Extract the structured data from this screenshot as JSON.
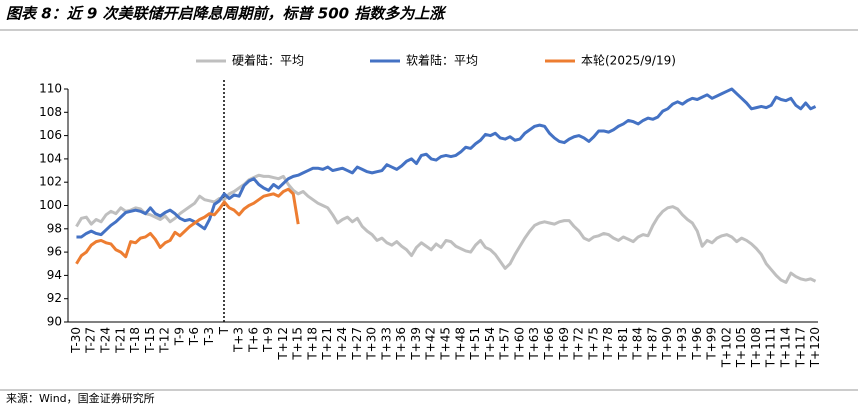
{
  "chart_data": {
    "type": "line",
    "title": "图表 8：近 9 次美联储开启降息周期前，标普 500 指数多为上涨",
    "source": "来源：Wind，国金证券研究所",
    "categories": [
      "T-30",
      null,
      null,
      "T-27",
      null,
      null,
      "T-24",
      null,
      null,
      "T-21",
      null,
      null,
      "T-18",
      null,
      null,
      "T-15",
      null,
      null,
      "T-12",
      null,
      null,
      "T-9",
      null,
      null,
      "T-6",
      null,
      null,
      "T-3",
      null,
      null,
      "T",
      null,
      null,
      "T+3",
      null,
      null,
      "T+6",
      null,
      null,
      "T+9",
      null,
      null,
      "T+12",
      null,
      null,
      "T+15",
      null,
      null,
      "T+18",
      null,
      null,
      "T+21",
      null,
      null,
      "T+24",
      null,
      null,
      "T+27",
      null,
      null,
      "T+30",
      null,
      null,
      "T+33",
      null,
      null,
      "T+36",
      null,
      null,
      "T+39",
      null,
      null,
      "T+42",
      null,
      null,
      "T+45",
      null,
      null,
      "T+48",
      null,
      null,
      "T+51",
      null,
      null,
      "T+54",
      null,
      null,
      "T+57",
      null,
      null,
      "T+60",
      null,
      null,
      "T+63",
      null,
      null,
      "T+66",
      null,
      null,
      "T+69",
      null,
      null,
      "T+72",
      null,
      null,
      "T+75",
      null,
      null,
      "T+78",
      null,
      null,
      "T+81",
      null,
      null,
      "T+84",
      null,
      null,
      "T+87",
      null,
      null,
      "T+90",
      null,
      null,
      "T+93",
      null,
      null,
      "T+96",
      null,
      null,
      "T+99",
      null,
      null,
      "T+102",
      null,
      null,
      "T+105",
      null,
      null,
      "T+108",
      null,
      null,
      "T+111",
      null,
      null,
      "T+114",
      null,
      null,
      "T+117",
      null,
      null,
      "T+120"
    ],
    "series": [
      {
        "name": "硬着陆：平均",
        "color": "#bfbfbf",
        "values": [
          98.2,
          98.9,
          99.0,
          98.4,
          98.8,
          98.6,
          99.2,
          99.5,
          99.3,
          99.8,
          99.5,
          99.6,
          99.8,
          99.7,
          99.3,
          99.2,
          99.0,
          98.8,
          99.1,
          98.6,
          98.9,
          99.3,
          99.6,
          99.9,
          100.2,
          100.8,
          100.5,
          100.4,
          100.3,
          100.6,
          100.5,
          101.0,
          101.2,
          101.5,
          101.8,
          102.2,
          102.4,
          102.6,
          102.5,
          102.5,
          102.4,
          102.3,
          102.5,
          101.8,
          101.3,
          101.0,
          101.2,
          100.8,
          100.5,
          100.2,
          100.0,
          99.8,
          99.2,
          98.5,
          98.8,
          99.0,
          98.6,
          98.9,
          98.2,
          97.8,
          97.5,
          97.0,
          97.2,
          96.8,
          96.6,
          96.9,
          96.5,
          96.2,
          95.7,
          96.4,
          96.8,
          96.5,
          96.2,
          96.7,
          96.4,
          97.0,
          96.9,
          96.5,
          96.3,
          96.1,
          96.0,
          96.6,
          97.0,
          96.4,
          96.2,
          95.8,
          95.2,
          94.6,
          95.0,
          95.8,
          96.5,
          97.2,
          97.8,
          98.3,
          98.5,
          98.6,
          98.5,
          98.4,
          98.6,
          98.7,
          98.7,
          98.2,
          97.8,
          97.2,
          97.0,
          97.3,
          97.4,
          97.6,
          97.5,
          97.2,
          97.0,
          97.3,
          97.1,
          96.9,
          97.3,
          97.5,
          97.4,
          98.3,
          99.0,
          99.5,
          99.8,
          99.9,
          99.7,
          99.2,
          98.8,
          98.5,
          97.8,
          96.5,
          97.0,
          96.8,
          97.2,
          97.4,
          97.5,
          97.3,
          96.9,
          97.2,
          97.0,
          96.7,
          96.3,
          95.8,
          95.0,
          94.5,
          94.0,
          93.6,
          93.4,
          94.2,
          93.9,
          93.7,
          93.6,
          93.7,
          93.5
        ]
      },
      {
        "name": "软着陆：平均",
        "color": "#4472c4",
        "values": [
          97.3,
          97.3,
          97.6,
          97.8,
          97.6,
          97.5,
          97.9,
          98.3,
          98.6,
          99.0,
          99.4,
          99.5,
          99.6,
          99.5,
          99.3,
          99.8,
          99.3,
          99.1,
          99.4,
          99.6,
          99.3,
          98.9,
          98.7,
          98.8,
          98.6,
          98.3,
          98.0,
          98.8,
          100.1,
          100.4,
          101.0,
          100.6,
          100.9,
          100.8,
          101.7,
          102.1,
          102.3,
          101.8,
          101.5,
          101.3,
          101.8,
          101.5,
          101.9,
          102.3,
          102.5,
          102.6,
          102.8,
          103.0,
          103.2,
          103.2,
          103.1,
          103.3,
          103.0,
          103.1,
          103.2,
          103.0,
          102.8,
          103.3,
          103.1,
          102.9,
          102.8,
          102.9,
          103.0,
          103.5,
          103.3,
          103.1,
          103.4,
          103.8,
          104.0,
          103.6,
          104.3,
          104.4,
          104.0,
          103.9,
          104.2,
          104.3,
          104.2,
          104.3,
          104.6,
          105.0,
          104.9,
          105.3,
          105.6,
          106.1,
          106.0,
          106.2,
          105.8,
          105.7,
          105.9,
          105.6,
          105.7,
          106.2,
          106.5,
          106.8,
          106.9,
          106.8,
          106.2,
          105.8,
          105.5,
          105.4,
          105.7,
          105.9,
          106.0,
          105.8,
          105.5,
          105.9,
          106.4,
          106.4,
          106.3,
          106.5,
          106.8,
          107.0,
          107.3,
          107.2,
          107.0,
          107.3,
          107.5,
          107.4,
          107.6,
          108.1,
          108.3,
          108.7,
          108.9,
          108.7,
          109.0,
          109.2,
          109.1,
          109.3,
          109.5,
          109.2,
          109.4,
          109.6,
          109.8,
          110.0,
          109.6,
          109.2,
          108.8,
          108.3,
          108.4,
          108.5,
          108.4,
          108.6,
          109.3,
          109.1,
          109.0,
          109.2,
          108.6,
          108.3,
          108.8,
          108.3,
          108.5
        ]
      },
      {
        "name": "本轮(2025/9/19)",
        "color": "#ed7d31",
        "values": [
          95.0,
          95.7,
          96.0,
          96.6,
          96.9,
          97.0,
          96.8,
          96.7,
          96.2,
          96.0,
          95.6,
          96.9,
          96.8,
          97.2,
          97.3,
          97.6,
          97.1,
          96.4,
          96.8,
          97.0,
          97.7,
          97.4,
          97.8,
          98.2,
          98.5,
          98.8,
          99.0,
          99.3,
          99.2,
          99.7,
          100.3,
          99.8,
          99.6,
          99.2,
          99.7,
          100.0,
          100.2,
          100.5,
          100.8,
          100.9,
          101.0,
          100.8,
          101.2,
          101.4,
          101.0,
          98.4,
          null,
          null,
          null,
          null,
          null,
          null,
          null,
          null,
          null,
          null,
          null,
          null,
          null,
          null,
          null,
          null,
          null,
          null,
          null,
          null,
          null,
          null,
          null,
          null,
          null,
          null,
          null,
          null,
          null,
          null,
          null,
          null,
          null,
          null,
          null,
          null,
          null,
          null,
          null,
          null,
          null,
          null,
          null,
          null,
          null,
          null,
          null,
          null,
          null,
          null,
          null,
          null,
          null,
          null,
          null,
          null,
          null,
          null,
          null,
          null,
          null,
          null,
          null,
          null,
          null,
          null,
          null,
          null,
          null,
          null,
          null,
          null,
          null,
          null,
          null,
          null,
          null,
          null,
          null,
          null,
          null,
          null,
          null,
          null,
          null,
          null,
          null,
          null,
          null,
          null,
          null,
          null,
          null,
          null,
          null,
          null,
          null,
          null,
          null,
          null,
          null,
          null,
          null,
          null,
          null
        ]
      }
    ],
    "ylim": [
      90,
      110
    ],
    "yticks": [
      90,
      92,
      94,
      96,
      98,
      100,
      102,
      104,
      106,
      108,
      110
    ],
    "grid": false,
    "legend": "top"
  }
}
